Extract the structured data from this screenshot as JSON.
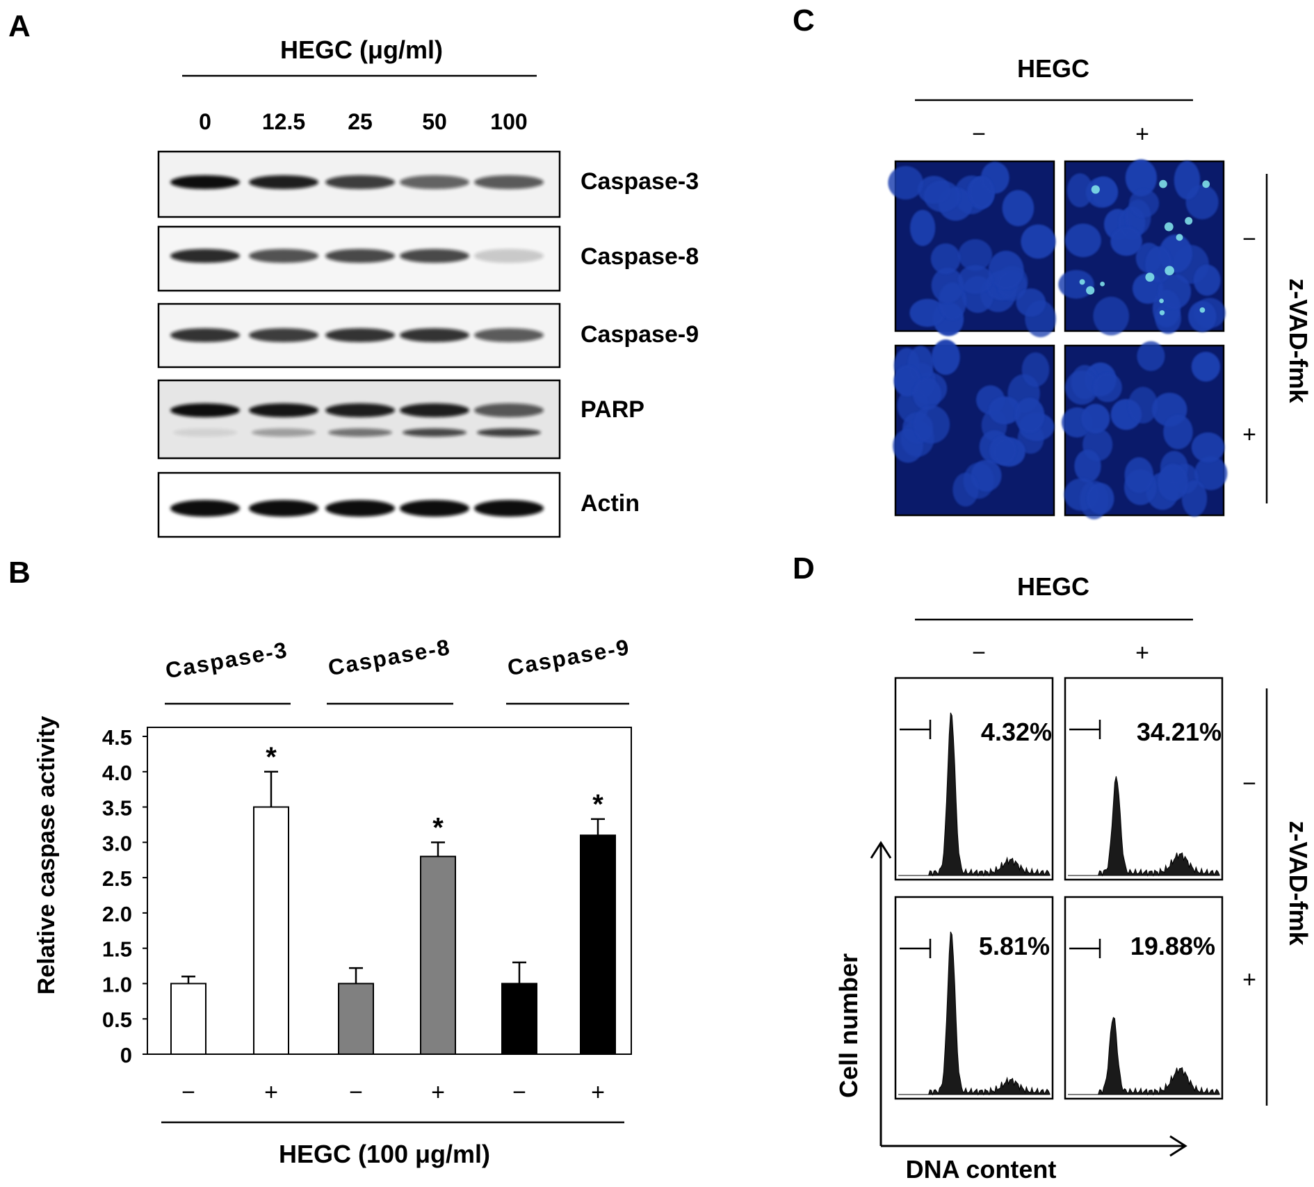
{
  "panel_letters": {
    "a": "A",
    "b": "B",
    "c": "C",
    "d": "D"
  },
  "panel_a": {
    "header": "HEGC (μg/ml)",
    "concentrations": [
      "0",
      "12.5",
      "25",
      "50",
      "100"
    ],
    "blots": [
      {
        "label": "Caspase-3",
        "bands": [
          1.0,
          0.9,
          0.75,
          0.55,
          0.6
        ]
      },
      {
        "label": "Caspase-8",
        "bands": [
          0.85,
          0.65,
          0.7,
          0.7,
          0.05
        ]
      },
      {
        "label": "Caspase-9",
        "bands": [
          0.8,
          0.75,
          0.8,
          0.8,
          0.6
        ]
      },
      {
        "label": "PARP",
        "bands": [
          1.0,
          0.95,
          0.9,
          0.9,
          0.6
        ],
        "cleaved": [
          0.05,
          0.35,
          0.6,
          0.85,
          0.9
        ]
      },
      {
        "label": "Actin",
        "bands": [
          1.0,
          1.0,
          1.0,
          1.0,
          1.0
        ]
      }
    ]
  },
  "panel_b": {
    "group_labels": [
      "Caspase-3",
      "Caspase-8",
      "Caspase-9"
    ],
    "treatment_signs": [
      "−",
      "+",
      "−",
      "+",
      "−",
      "+"
    ],
    "xlabel": "HEGC (100 μg/ml)",
    "significance_mark": "*",
    "chart_data": {
      "type": "bar",
      "ylabel": "Relative caspase activity",
      "ylim": [
        0,
        4.5
      ],
      "yticks": [
        "0",
        "0.5",
        "1.0",
        "1.5",
        "2.0",
        "2.5",
        "3.0",
        "3.5",
        "4.0",
        "4.5"
      ],
      "bars": [
        {
          "group": "Caspase-3",
          "treatment": "−",
          "value": 1.0,
          "error": 0.1,
          "significant": false,
          "color": "#ffffff"
        },
        {
          "group": "Caspase-3",
          "treatment": "+",
          "value": 3.5,
          "error": 0.5,
          "significant": true,
          "color": "#ffffff"
        },
        {
          "group": "Caspase-8",
          "treatment": "−",
          "value": 1.0,
          "error": 0.22,
          "significant": false,
          "color": "#808080"
        },
        {
          "group": "Caspase-8",
          "treatment": "+",
          "value": 2.8,
          "error": 0.2,
          "significant": true,
          "color": "#808080"
        },
        {
          "group": "Caspase-9",
          "treatment": "−",
          "value": 1.0,
          "error": 0.3,
          "significant": false,
          "color": "#000000"
        },
        {
          "group": "Caspase-9",
          "treatment": "+",
          "value": 3.1,
          "error": 0.23,
          "significant": true,
          "color": "#000000"
        }
      ]
    }
  },
  "panel_c": {
    "header": "HEGC",
    "column_signs": [
      "−",
      "+"
    ],
    "row_signs": [
      "−",
      "+"
    ],
    "side_label": "z-VAD-fmk",
    "image_color": "#1a3fb0"
  },
  "panel_d": {
    "header": "HEGC",
    "column_signs": [
      "−",
      "+"
    ],
    "row_signs": [
      "−",
      "+"
    ],
    "side_label": "z-VAD-fmk",
    "percentages": [
      "4.32%",
      "34.21%",
      "5.81%",
      "19.88%"
    ],
    "ylabel": "Cell number",
    "xlabel": "DNA content"
  }
}
